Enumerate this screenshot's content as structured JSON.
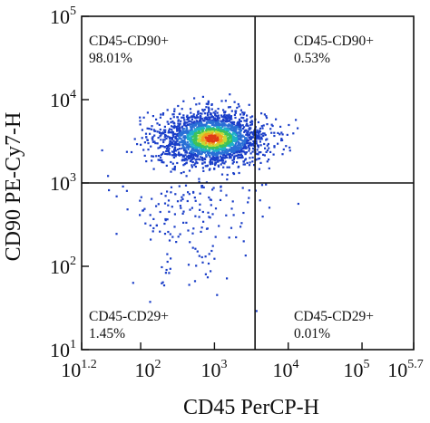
{
  "chart_data": {
    "type": "scatter",
    "subtype": "flow-cytometry density dot plot",
    "xlabel": "CD45 PerCP-H",
    "ylabel": "CD90 PE-Cy7-H",
    "x_scale": "log10",
    "y_scale": "log10",
    "xlim": [
      15.85,
      501187
    ],
    "ylim": [
      10,
      100000
    ],
    "x_tick_labels": [
      {
        "base": "10",
        "exp": "1.2"
      },
      {
        "base": "10",
        "exp": "2"
      },
      {
        "base": "10",
        "exp": "3"
      },
      {
        "base": "10",
        "exp": "4"
      },
      {
        "base": "10",
        "exp": "5"
      },
      {
        "base": "10",
        "exp": "5.7"
      }
    ],
    "y_tick_labels": [
      {
        "base": "10",
        "exp": "1"
      },
      {
        "base": "10",
        "exp": "2"
      },
      {
        "base": "10",
        "exp": "3"
      },
      {
        "base": "10",
        "exp": "4"
      },
      {
        "base": "10",
        "exp": "5"
      }
    ],
    "gates": {
      "x_threshold": 3550,
      "y_threshold": 1000
    },
    "quadrants": [
      {
        "position": "top-left",
        "label": "CD45-CD90+",
        "percent": "98.01%"
      },
      {
        "position": "top-right",
        "label": "CD45-CD90+",
        "percent": "0.53%"
      },
      {
        "position": "bottom-left",
        "label": "CD45-CD29+",
        "percent": "1.45%"
      },
      {
        "position": "bottom-right",
        "label": "CD45-CD29+",
        "percent": "0.01%"
      }
    ],
    "population": {
      "center_x": 900,
      "center_y": 3500,
      "n_events_drawn": 2400
    },
    "density_colors": [
      "#1a3ec8",
      "#2a6fd6",
      "#1fb0c8",
      "#3cc25a",
      "#c8d832",
      "#f0a020",
      "#e03a16"
    ],
    "grid": false,
    "legend": "none"
  }
}
